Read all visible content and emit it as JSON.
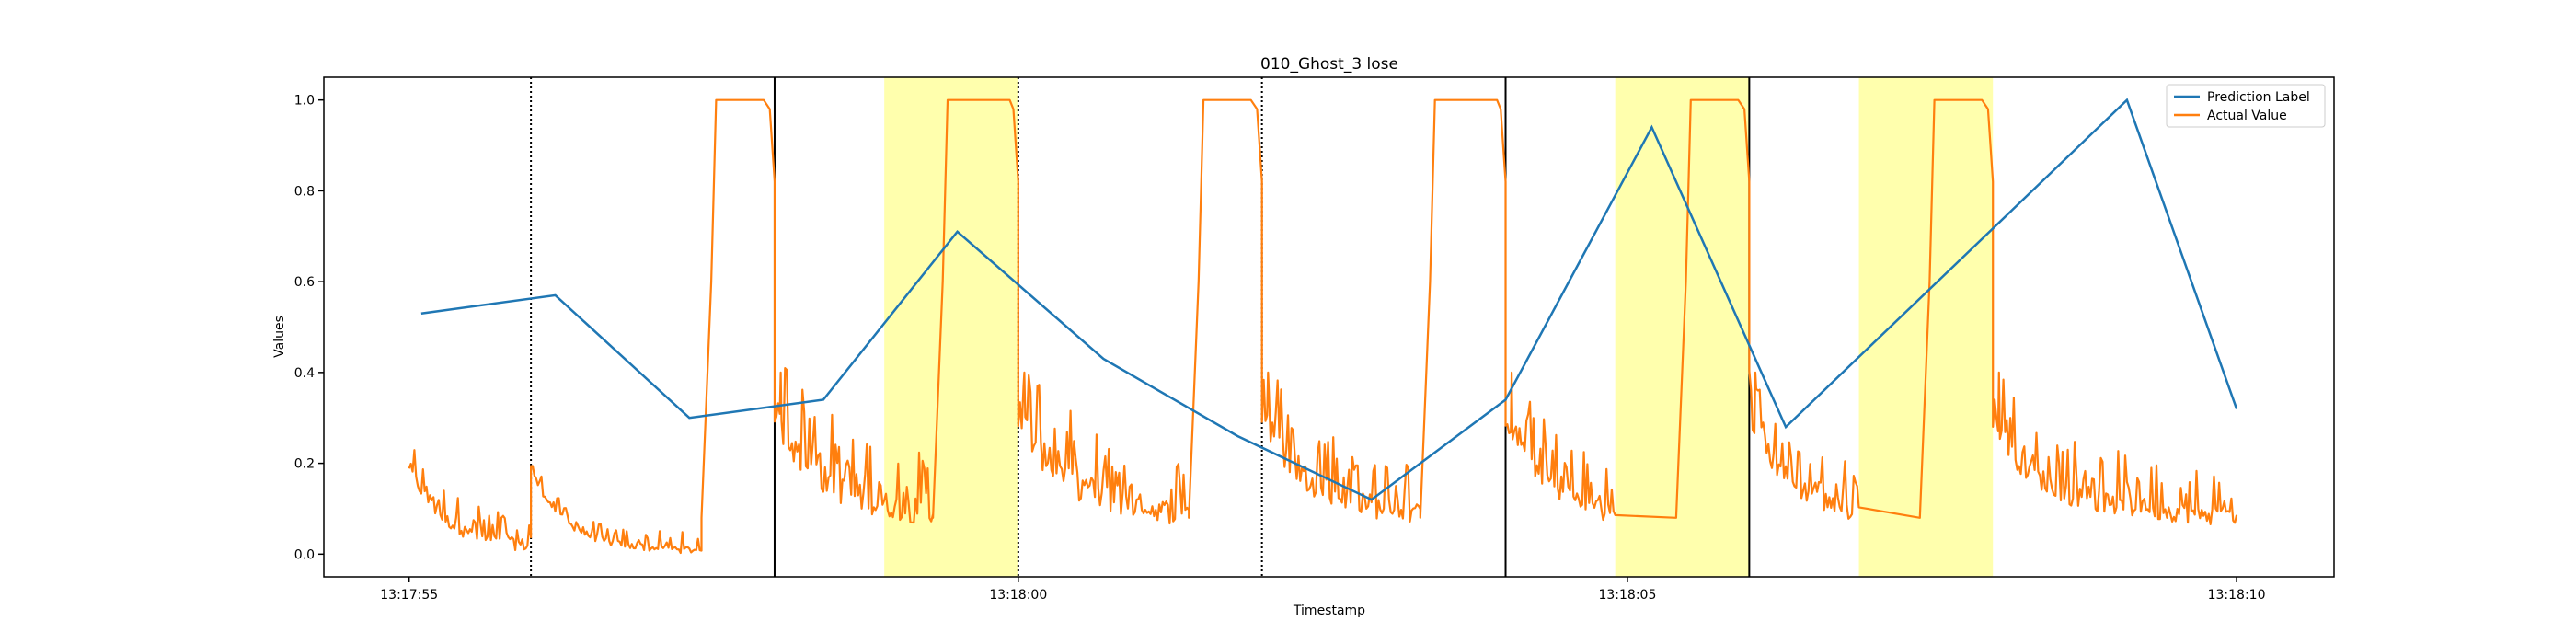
{
  "chart_data": {
    "type": "line",
    "title": "010_Ghost_3 lose",
    "xlabel": "Timestamp",
    "ylabel": "Values",
    "xlim": [
      -0.7,
      15.8
    ],
    "ylim": [
      -0.05,
      1.05
    ],
    "x_ticks": [
      {
        "value": 0,
        "label": "13:17:55"
      },
      {
        "value": 5,
        "label": "13:18:00"
      },
      {
        "value": 10,
        "label": "13:18:05"
      },
      {
        "value": 15,
        "label": "13:18:10"
      }
    ],
    "y_ticks": [
      {
        "value": 0.0,
        "label": "0.0"
      },
      {
        "value": 0.2,
        "label": "0.2"
      },
      {
        "value": 0.4,
        "label": "0.4"
      },
      {
        "value": 0.6,
        "label": "0.6"
      },
      {
        "value": 0.8,
        "label": "0.8"
      },
      {
        "value": 1.0,
        "label": "1.0"
      }
    ],
    "grid": false,
    "legend": "top-right",
    "highlight_bands": [
      [
        3.9,
        5.0
      ],
      [
        9.9,
        11.0
      ],
      [
        11.9,
        13.0
      ]
    ],
    "solid_vlines": [
      3.0,
      9.0,
      11.0
    ],
    "dotted_vlines": [
      1.0,
      5.0,
      7.0
    ],
    "series": [
      {
        "name": "Prediction Label",
        "color": "#1f77b4",
        "points": [
          [
            0.1,
            0.53
          ],
          [
            1.2,
            0.57
          ],
          [
            2.3,
            0.3
          ],
          [
            3.4,
            0.34
          ],
          [
            4.5,
            0.71
          ],
          [
            5.7,
            0.43
          ],
          [
            6.8,
            0.26
          ],
          [
            7.9,
            0.12
          ],
          [
            9.0,
            0.34
          ],
          [
            10.2,
            0.94
          ],
          [
            11.3,
            0.28
          ],
          [
            14.1,
            1.0
          ],
          [
            15.0,
            0.32
          ]
        ]
      },
      {
        "name": "Actual Value",
        "color": "#ff7f0e",
        "baseline_segments": [
          [
            0.0,
            1.0,
            0.07,
            0.07
          ],
          [
            1.0,
            2.4,
            0.035,
            0.04
          ],
          [
            3.0,
            4.3,
            0.18,
            0.13
          ],
          [
            5.0,
            6.4,
            0.17,
            0.13
          ],
          [
            7.0,
            8.3,
            0.16,
            0.12
          ],
          [
            9.0,
            9.9,
            0.14,
            0.11
          ],
          [
            11.0,
            11.9,
            0.12,
            0.11
          ],
          [
            13.0,
            15.0,
            0.14,
            0.1
          ]
        ],
        "pulses": [
          [
            2.4,
            3.0
          ],
          [
            4.3,
            5.0
          ],
          [
            6.4,
            7.0
          ],
          [
            8.3,
            9.0
          ],
          [
            10.4,
            11.0
          ],
          [
            12.4,
            13.0
          ]
        ]
      }
    ]
  }
}
